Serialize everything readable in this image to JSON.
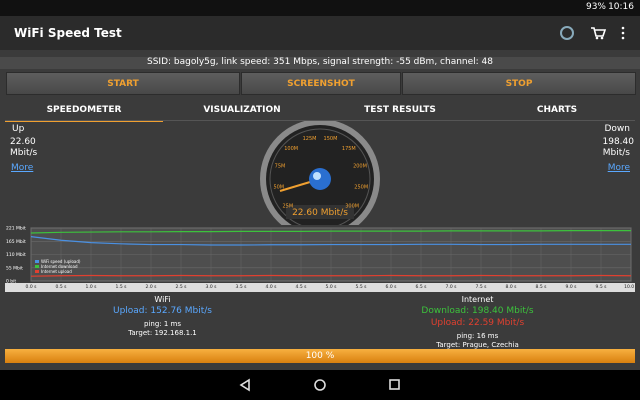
{
  "status_bar": {
    "battery": "93%",
    "time": "10:16"
  },
  "app_bar": {
    "title": "WiFi Speed Test"
  },
  "info": {
    "ssid_line": "SSID: bagoly5g, link speed: 351 Mbps, signal strength: -55 dBm, channel: 48"
  },
  "buttons": [
    "START",
    "SCREENSHOT",
    "STOP"
  ],
  "tabs": [
    "SPEEDOMETER",
    "VISUALIZATION",
    "TEST RESULTS",
    "CHARTS"
  ],
  "up": {
    "label": "Up",
    "value": "22.60",
    "unit": "Mbit/s",
    "link": "More"
  },
  "down": {
    "label": "Down",
    "value": "198.40",
    "unit": "Mbit/s",
    "link": "More"
  },
  "gauge": {
    "scale": [
      "25M",
      "50M",
      "75M",
      "100M",
      "125M",
      "150M",
      "175M",
      "200M",
      "250M",
      "300M"
    ],
    "readout": "22.60 Mbit/s"
  },
  "graph": {
    "ylim": [
      0,
      221
    ],
    "yticks": [
      {
        "value": 0,
        "label": "0 bit"
      },
      {
        "value": 55,
        "label": "55 Mbit"
      },
      {
        "value": 110,
        "label": "110 Mbit"
      },
      {
        "value": 165,
        "label": "165 Mbit"
      },
      {
        "value": 221,
        "label": "221 Mbit"
      }
    ],
    "x": [
      "0.0 s",
      "0.5 s",
      "1.0 s",
      "1.5 s",
      "2.0 s",
      "2.5 s",
      "3.0 s",
      "3.5 s",
      "4.0 s",
      "4.5 s",
      "5.0 s",
      "5.5 s",
      "6.0 s",
      "6.5 s",
      "7.0 s",
      "7.5 s",
      "8.0 s",
      "8.5 s",
      "9.0 s",
      "9.5 s",
      "10.0 s"
    ],
    "series": [
      {
        "name": "WiFi speed (upload)",
        "color": "#4a90e2",
        "values": [
          185,
          170,
          160,
          155,
          152,
          152,
          150,
          150,
          151,
          151,
          152,
          152,
          152,
          153,
          153,
          152,
          152,
          153,
          153,
          153,
          153
        ]
      },
      {
        "name": "Internet download",
        "color": "#3cc23c",
        "values": [
          200,
          203,
          204,
          205,
          205,
          206,
          206,
          207,
          207,
          207,
          208,
          208,
          208,
          208,
          209,
          209,
          209,
          209,
          210,
          210,
          210
        ]
      },
      {
        "name": "Internet upload",
        "color": "#e04030",
        "values": [
          20,
          22,
          23,
          22,
          22,
          23,
          22,
          22,
          23,
          22,
          22,
          22,
          23,
          22,
          22,
          23,
          22,
          22,
          22,
          23,
          22
        ]
      }
    ]
  },
  "wifi": {
    "title": "WiFi",
    "upload": "Upload: 152.76 Mbit/s",
    "ping": "ping: 1 ms",
    "target": "Target: 192.168.1.1"
  },
  "internet": {
    "title": "Internet",
    "download": "Download: 198.40 Mbit/s",
    "upload": "Upload: 22.59 Mbit/s",
    "ping": "ping: 16 ms",
    "target": "Target: Prague, Czechia"
  },
  "progress": {
    "label": "100 %"
  }
}
